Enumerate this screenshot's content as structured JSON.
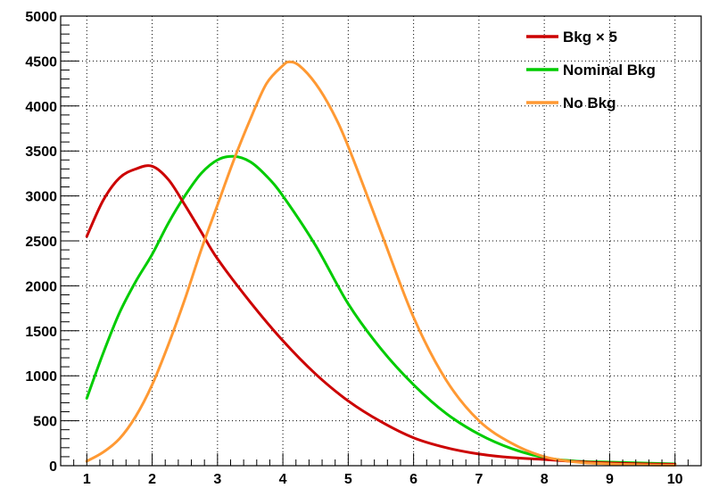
{
  "chart_data": {
    "type": "line",
    "title": "",
    "xlabel": "",
    "ylabel": "",
    "xlim": [
      0.6,
      10.4
    ],
    "ylim": [
      0,
      5000
    ],
    "grid": true,
    "legend_position": "top-right",
    "x_ticks": [
      "1",
      "2",
      "3",
      "4",
      "5",
      "6",
      "7",
      "8",
      "9",
      "10"
    ],
    "y_ticks": [
      "0",
      "500",
      "1000",
      "1500",
      "2000",
      "2500",
      "3000",
      "3500",
      "4000",
      "4500",
      "5000"
    ],
    "series": [
      {
        "name": "Bkg × 5",
        "color": "#cc0000",
        "x": [
          1.0,
          1.25,
          1.5,
          1.75,
          2.0,
          2.25,
          2.5,
          2.75,
          3.0,
          3.5,
          4.0,
          4.5,
          5.0,
          5.5,
          6.0,
          6.5,
          7.0,
          7.5,
          8.0,
          8.5,
          9.0,
          9.5,
          10.0
        ],
        "y": [
          2550,
          2950,
          3200,
          3300,
          3330,
          3180,
          2900,
          2600,
          2300,
          1820,
          1390,
          1020,
          720,
          490,
          310,
          200,
          130,
          90,
          70,
          45,
          30,
          20,
          15
        ]
      },
      {
        "name": "Nominal Bkg",
        "color": "#00cc00",
        "x": [
          1.0,
          1.25,
          1.5,
          1.75,
          2.0,
          2.25,
          2.5,
          2.75,
          3.0,
          3.25,
          3.5,
          3.75,
          4.0,
          4.5,
          5.0,
          5.5,
          6.0,
          6.5,
          7.0,
          7.5,
          8.0,
          8.5,
          9.0,
          9.5,
          10.0
        ],
        "y": [
          750,
          1250,
          1700,
          2050,
          2350,
          2700,
          3000,
          3250,
          3400,
          3440,
          3380,
          3220,
          3000,
          2450,
          1800,
          1300,
          900,
          580,
          350,
          190,
          90,
          50,
          40,
          30,
          20
        ]
      },
      {
        "name": "No Bkg",
        "color": "#ff9933",
        "x": [
          1.0,
          1.25,
          1.5,
          1.75,
          2.0,
          2.25,
          2.5,
          2.75,
          3.0,
          3.25,
          3.5,
          3.75,
          4.0,
          4.1,
          4.25,
          4.5,
          4.75,
          5.0,
          5.5,
          6.0,
          6.5,
          7.0,
          7.5,
          8.0,
          8.5,
          9.0,
          9.5,
          10.0
        ],
        "y": [
          50,
          150,
          300,
          550,
          900,
          1350,
          1850,
          2400,
          2900,
          3400,
          3850,
          4250,
          4450,
          4490,
          4450,
          4250,
          3950,
          3550,
          2600,
          1650,
          950,
          500,
          250,
          100,
          40,
          20,
          10,
          5
        ]
      }
    ]
  }
}
